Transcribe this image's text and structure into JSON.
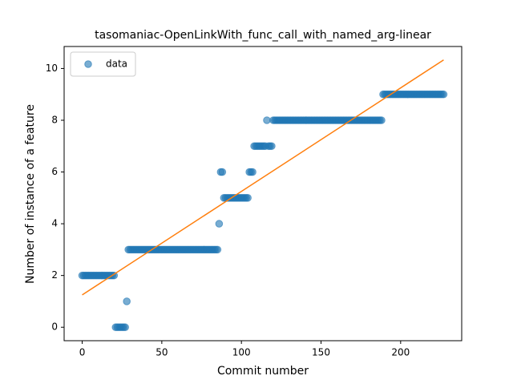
{
  "chart_data": {
    "type": "scatter",
    "title": "tasomaniac-OpenLinkWith_func_call_with_named_arg-linear",
    "xlabel": "Commit number",
    "ylabel": "Number of instance of a feature",
    "xlim": [
      -11.35,
      238.35
    ],
    "xticks": [
      0,
      50,
      100,
      150,
      200
    ],
    "ylim": [
      -0.52,
      10.85
    ],
    "yticks": [
      0,
      2,
      4,
      6,
      8,
      10
    ],
    "legend": "upper left",
    "series": [
      {
        "name": "data",
        "color": "#1f77b4",
        "x": [
          0,
          1,
          2,
          3,
          4,
          5,
          6,
          7,
          8,
          9,
          10,
          11,
          12,
          13,
          14,
          15,
          16,
          17,
          18,
          19,
          20,
          21,
          22,
          23,
          24,
          25,
          26,
          27,
          28,
          29,
          30,
          31,
          32,
          33,
          34,
          35,
          36,
          37,
          38,
          39,
          40,
          41,
          42,
          43,
          44,
          45,
          46,
          47,
          48,
          49,
          50,
          51,
          52,
          53,
          54,
          55,
          56,
          57,
          58,
          59,
          60,
          61,
          62,
          63,
          64,
          65,
          66,
          67,
          68,
          69,
          70,
          71,
          72,
          73,
          74,
          75,
          76,
          77,
          78,
          79,
          80,
          81,
          82,
          83,
          84,
          85,
          86,
          87,
          88,
          89,
          90,
          91,
          92,
          93,
          94,
          95,
          96,
          97,
          98,
          99,
          100,
          101,
          102,
          103,
          104,
          105,
          106,
          107,
          108,
          109,
          110,
          111,
          112,
          113,
          114,
          115,
          116,
          117,
          118,
          119,
          120,
          121,
          122,
          123,
          124,
          125,
          126,
          127,
          128,
          129,
          130,
          131,
          132,
          133,
          134,
          135,
          136,
          137,
          138,
          139,
          140,
          141,
          142,
          143,
          144,
          145,
          146,
          147,
          148,
          149,
          150,
          151,
          152,
          153,
          154,
          155,
          156,
          157,
          158,
          159,
          160,
          161,
          162,
          163,
          164,
          165,
          166,
          167,
          168,
          169,
          170,
          171,
          172,
          173,
          174,
          175,
          176,
          177,
          178,
          179,
          180,
          181,
          182,
          183,
          184,
          185,
          186,
          187,
          188,
          189,
          190,
          191,
          192,
          193,
          194,
          195,
          196,
          197,
          198,
          199,
          200,
          201,
          202,
          203,
          204,
          205,
          206,
          207,
          208,
          209,
          210,
          211,
          212,
          213,
          214,
          215,
          216,
          217,
          218,
          219,
          220,
          221,
          222,
          223,
          224,
          225,
          226,
          227
        ],
        "values": [
          2,
          2,
          2,
          2,
          2,
          2,
          2,
          2,
          2,
          2,
          2,
          2,
          2,
          2,
          2,
          2,
          2,
          2,
          2,
          2,
          2,
          0,
          0,
          0,
          0,
          0,
          0,
          0,
          1,
          3,
          3,
          3,
          3,
          3,
          3,
          3,
          3,
          3,
          3,
          3,
          3,
          3,
          3,
          3,
          3,
          3,
          3,
          3,
          3,
          3,
          3,
          3,
          3,
          3,
          3,
          3,
          3,
          3,
          3,
          3,
          3,
          3,
          3,
          3,
          3,
          3,
          3,
          3,
          3,
          3,
          3,
          3,
          3,
          3,
          3,
          3,
          3,
          3,
          3,
          3,
          3,
          3,
          3,
          3,
          3,
          3,
          4,
          6,
          6,
          5,
          5,
          5,
          5,
          5,
          5,
          5,
          5,
          5,
          5,
          5,
          5,
          5,
          5,
          5,
          5,
          6,
          6,
          6,
          7,
          7,
          7,
          7,
          7,
          7,
          7,
          7,
          8,
          7,
          7,
          7,
          8,
          8,
          8,
          8,
          8,
          8,
          8,
          8,
          8,
          8,
          8,
          8,
          8,
          8,
          8,
          8,
          8,
          8,
          8,
          8,
          8,
          8,
          8,
          8,
          8,
          8,
          8,
          8,
          8,
          8,
          8,
          8,
          8,
          8,
          8,
          8,
          8,
          8,
          8,
          8,
          8,
          8,
          8,
          8,
          8,
          8,
          8,
          8,
          8,
          8,
          8,
          8,
          8,
          8,
          8,
          8,
          8,
          8,
          8,
          8,
          8,
          8,
          8,
          8,
          8,
          8,
          8,
          8,
          8,
          9,
          9,
          9,
          9,
          9,
          9,
          9,
          9,
          9,
          9,
          9,
          9,
          9,
          9,
          9,
          9,
          9,
          9,
          9,
          9,
          9,
          9,
          9,
          9,
          9,
          9,
          9,
          9,
          9,
          9,
          9,
          9,
          9,
          9,
          9,
          9,
          9,
          9,
          9
        ]
      },
      {
        "type": "line",
        "color": "#ff7f0e",
        "x": [
          0,
          227
        ],
        "values": [
          1.25,
          10.33
        ]
      }
    ]
  }
}
